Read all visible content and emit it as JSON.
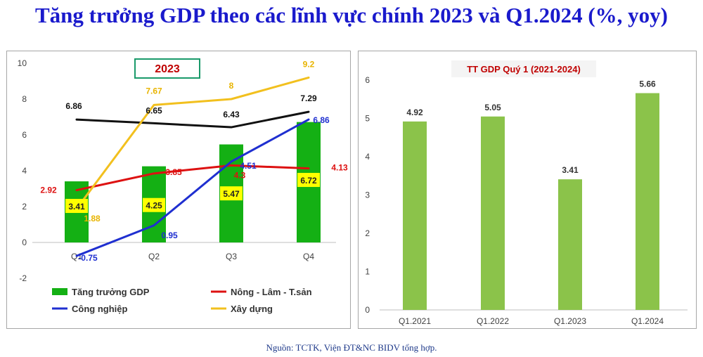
{
  "page": {
    "title": "Tăng trưởng GDP theo các lĩnh vực chính 2023 và Q1.2024 (%, yoy)",
    "source": "Nguồn: TCTK, Viện ĐT&NC BIDV tổng hợp."
  },
  "colors": {
    "title": "#1a1acc",
    "gdp_bar": "#14b014",
    "agriculture": "#dd1111",
    "industry": "#1f2fd0",
    "construction": "#f2c01e",
    "services": "#111111",
    "right_bar": "#8bc34a",
    "label_box": "#ffff00",
    "badge_border": "#1a9a6a"
  },
  "chart_data": [
    {
      "type": "bar",
      "badge": "2023",
      "categories": [
        "Q1",
        "Q2",
        "Q3",
        "Q4"
      ],
      "ylim": [
        -2,
        10
      ],
      "yticks": [
        -2,
        0,
        2,
        4,
        6,
        8,
        10
      ],
      "grid": false,
      "legend_position": "bottom",
      "bar_series": {
        "name": "Tăng trưởng GDP",
        "values": [
          3.41,
          4.25,
          5.47,
          6.72
        ],
        "labels": [
          "3.41",
          "4.25",
          "5.47",
          "6.72"
        ]
      },
      "line_series": [
        {
          "key": "agriculture",
          "name": "Nông - Lâm - T.sản",
          "values": [
            2.92,
            3.85,
            4.3,
            4.13
          ],
          "labels": [
            "2.92",
            "3.85",
            "4.3",
            "4.13"
          ]
        },
        {
          "key": "industry",
          "name": "Công nghiệp",
          "values": [
            -0.75,
            0.95,
            4.51,
            6.86
          ],
          "labels": [
            "-0.75",
            "0.95",
            "4.51",
            "6.86"
          ]
        },
        {
          "key": "construction",
          "name": "Xây dựng",
          "values": [
            1.88,
            7.67,
            8,
            9.2
          ],
          "labels": [
            "1.88",
            "7.67",
            "8",
            "9.2"
          ]
        },
        {
          "key": "services",
          "name": "",
          "values": [
            6.86,
            6.65,
            6.43,
            7.29
          ],
          "labels": [
            "6.86",
            "6.65",
            "6.43",
            "7.29"
          ]
        }
      ],
      "legend": [
        "Tăng trưởng GDP",
        "Nông - Lâm - T.sản",
        "Công nghiệp",
        "Xây dựng"
      ]
    },
    {
      "type": "bar",
      "title": "TT GDP Quý 1 (2021-2024)",
      "categories": [
        "Q1.2021",
        "Q1.2022",
        "Q1.2023",
        "Q1.2024"
      ],
      "values": [
        4.92,
        5.05,
        3.41,
        5.66
      ],
      "labels": [
        "4.92",
        "5.05",
        "3.41",
        "5.66"
      ],
      "ylim": [
        0,
        6
      ],
      "yticks": [
        0,
        1,
        2,
        3,
        4,
        5,
        6
      ],
      "grid": false
    }
  ]
}
